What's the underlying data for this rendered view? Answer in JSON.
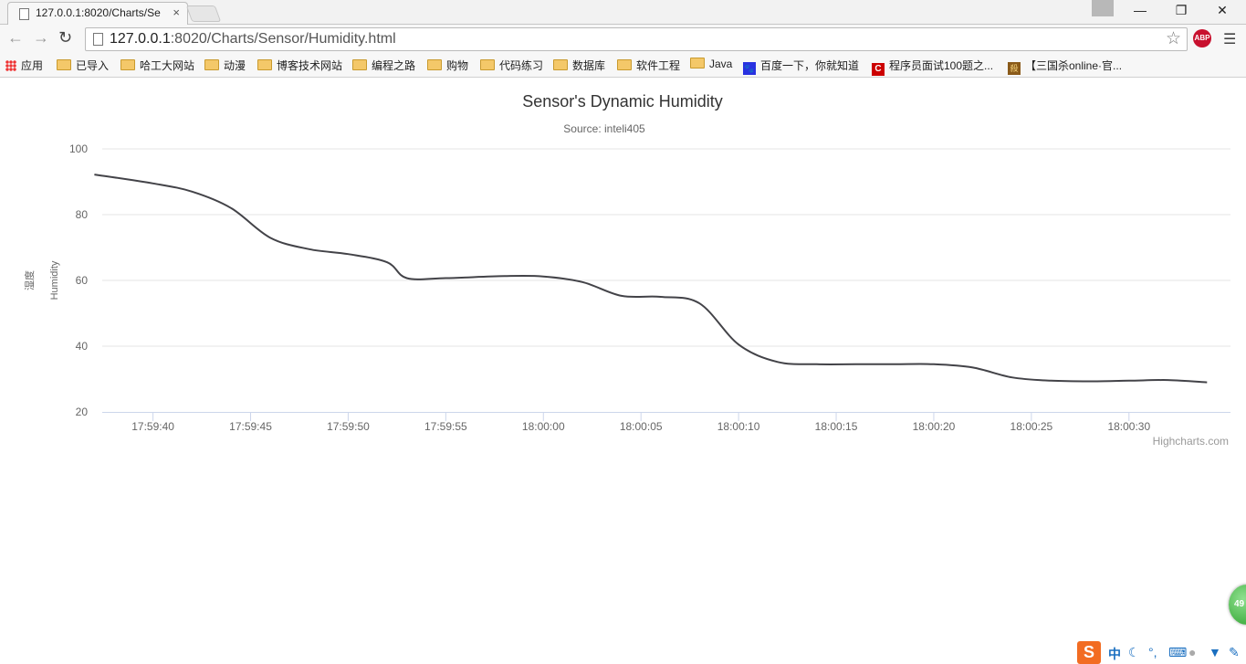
{
  "browser": {
    "tab_title": "127.0.0.1:8020/Charts/Se",
    "url_host": "127.0.0.1",
    "url_rest": ":8020/Charts/Sensor/Humidity.html",
    "abp_label": "ABP",
    "bookmarks": [
      {
        "label": "应用",
        "icon": "apps-icon"
      },
      {
        "label": "已导入",
        "icon": "folder-icon"
      },
      {
        "label": "哈工大网站",
        "icon": "folder-icon"
      },
      {
        "label": "动漫",
        "icon": "folder-icon"
      },
      {
        "label": "博客技术网站",
        "icon": "folder-icon"
      },
      {
        "label": "编程之路",
        "icon": "folder-icon"
      },
      {
        "label": "购物",
        "icon": "folder-icon"
      },
      {
        "label": "代码练习",
        "icon": "folder-icon"
      },
      {
        "label": "数据库",
        "icon": "folder-icon"
      },
      {
        "label": "软件工程",
        "icon": "folder-icon"
      },
      {
        "label": "Java",
        "icon": "folder-icon"
      },
      {
        "label": "百度一下，你就知道",
        "icon": "baidu-icon"
      },
      {
        "label": "程序员面试100题之...",
        "icon": "csdn-icon"
      },
      {
        "label": "【三国杀online·官...",
        "icon": "sanguosha-icon"
      }
    ]
  },
  "chart_data": {
    "type": "line",
    "title": "Sensor's Dynamic Humidity",
    "subtitle": "Source: inteli405",
    "ylabel_cn": "湿度",
    "ylabel": "Humidity",
    "ylim": [
      20,
      100
    ],
    "yticks": [
      20,
      40,
      60,
      80,
      100
    ],
    "xticks": [
      "17:59:40",
      "17:59:45",
      "17:59:50",
      "17:59:55",
      "18:00:00",
      "18:00:05",
      "18:00:10",
      "18:00:15",
      "18:00:20",
      "18:00:25",
      "18:00:30"
    ],
    "xlim_seconds_from_first_tick": [
      -2.6,
      55.2
    ],
    "series": [
      {
        "x": [
          "17:59:37",
          "17:59:40",
          "17:59:42",
          "17:59:44",
          "17:59:46",
          "17:59:48",
          "17:59:50",
          "17:59:52",
          "17:59:53",
          "17:59:55",
          "17:59:58",
          "18:00:00",
          "18:00:02",
          "18:00:04",
          "18:00:06",
          "18:00:08",
          "18:00:10",
          "18:00:12",
          "18:00:14",
          "18:00:16",
          "18:00:18",
          "18:00:20",
          "18:00:22",
          "18:00:24",
          "18:00:26",
          "18:00:28",
          "18:00:30",
          "18:00:32",
          "18:00:34"
        ],
        "values": [
          92.2,
          89.5,
          87,
          82,
          73,
          69.5,
          68,
          65.5,
          60.7,
          60.7,
          61.3,
          61.2,
          59.5,
          55.3,
          55,
          53,
          40.5,
          35.2,
          34.5,
          34.5,
          34.5,
          34.5,
          33.5,
          30.5,
          29.5,
          29.3,
          29.5,
          29.7,
          29
        ]
      }
    ],
    "credits": "Highcharts.com",
    "grid": true,
    "legend": "none",
    "line_color": "#434348"
  },
  "tray": {
    "ime_label": "中",
    "badge_number": "49"
  }
}
